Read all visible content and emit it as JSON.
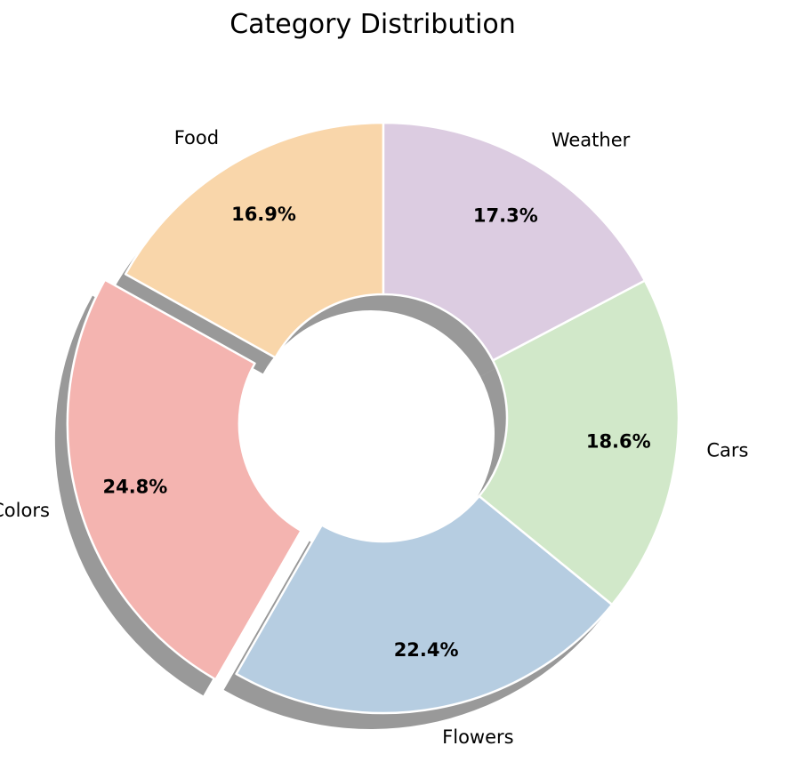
{
  "chart_data": {
    "type": "pie",
    "style": "donut",
    "title": "Category Distribution",
    "categories": [
      "Food",
      "Colors",
      "Flowers",
      "Cars",
      "Weather"
    ],
    "values": [
      16.9,
      24.8,
      22.4,
      18.6,
      17.3
    ],
    "value_labels": [
      "16.9%",
      "24.8%",
      "22.4%",
      "18.6%",
      "17.3%"
    ],
    "colors": [
      "#f9d6aa",
      "#f4b4b0",
      "#b6cde1",
      "#d1e8c9",
      "#dccce1"
    ],
    "exploded": [
      "Colors"
    ],
    "start_angle_deg": 90,
    "direction": "counterclockwise",
    "shadow": true,
    "legend": "none"
  }
}
